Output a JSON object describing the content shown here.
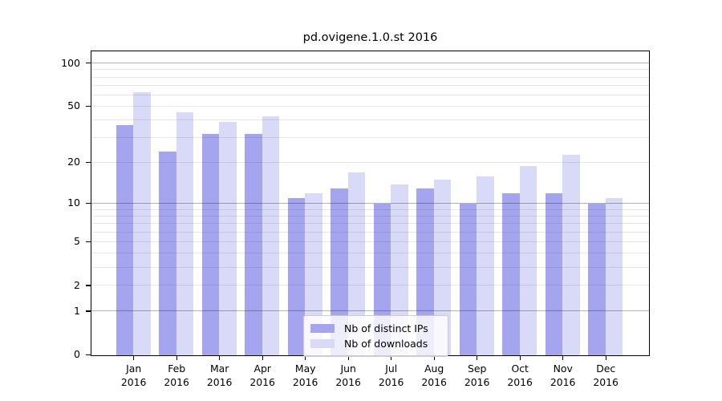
{
  "title": "pd.ovigene.1.0.st 2016",
  "colors": {
    "ips": "#a5a5ef",
    "downloads": "#d9d9f8",
    "grid_major": "rgba(0,0,0,0.30)",
    "grid_minor": "rgba(0,0,0,0.095)",
    "spine": "#000000"
  },
  "legend": {
    "items": [
      {
        "label": "Nb of distinct IPs",
        "color_key": "ips"
      },
      {
        "label": "Nb of downloads",
        "color_key": "downloads"
      }
    ],
    "position": "lower center"
  },
  "chart_data": {
    "type": "bar",
    "title": "pd.ovigene.1.0.st 2016",
    "categories": [
      "Jan",
      "Feb",
      "Mar",
      "Apr",
      "May",
      "Jun",
      "Jul",
      "Aug",
      "Sep",
      "Oct",
      "Nov",
      "Dec"
    ],
    "x_year_sublabel": "2016",
    "series": [
      {
        "name": "Nb of distinct IPs",
        "color_key": "ips",
        "values": [
          37,
          24,
          32,
          32,
          11,
          13,
          10,
          13,
          10,
          12,
          12,
          10
        ]
      },
      {
        "name": "Nb of downloads",
        "color_key": "downloads",
        "values": [
          63,
          46,
          39,
          43,
          12,
          17,
          14,
          15,
          16,
          19,
          23,
          11
        ]
      }
    ],
    "yscale": "log10(1+y)",
    "ylim": [
      0,
      124
    ],
    "yticks": [
      {
        "value": 100,
        "label": "100"
      },
      {
        "value": 50,
        "label": "50"
      },
      {
        "value": 20,
        "label": "20"
      },
      {
        "value": 10,
        "label": "10"
      },
      {
        "value": 5,
        "label": "5"
      },
      {
        "value": 2,
        "label": "2"
      },
      {
        "value": 1,
        "label": "1"
      },
      {
        "value": 0,
        "label": "0"
      }
    ],
    "grid_major_values": [
      1,
      10,
      100
    ],
    "grid_minor_values": [
      2,
      3,
      4,
      5,
      6,
      7,
      8,
      9,
      20,
      30,
      40,
      50,
      60,
      70,
      80,
      90
    ],
    "grid_on": true,
    "legend_position": "lower center"
  }
}
